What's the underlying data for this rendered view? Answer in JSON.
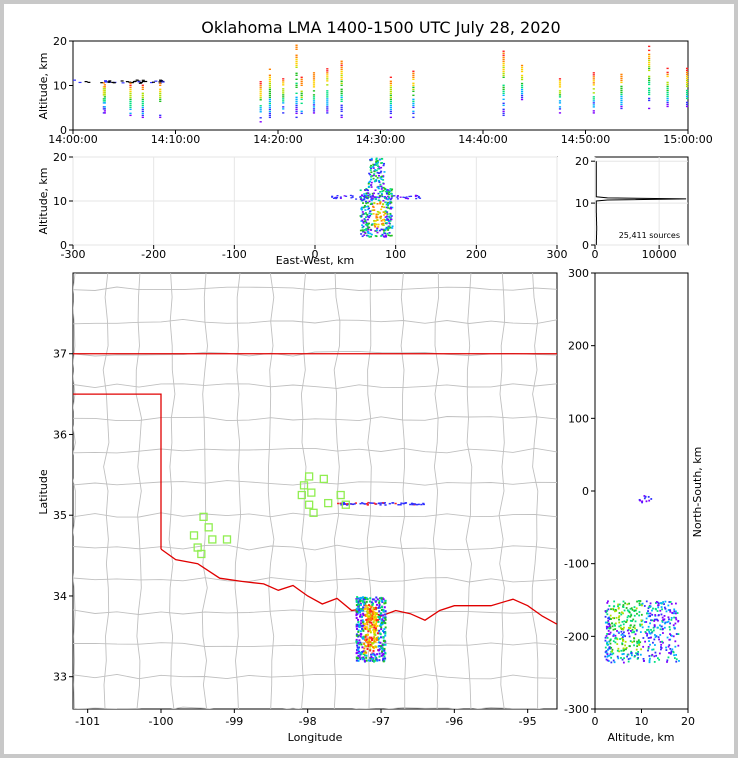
{
  "title": "Oklahoma LMA 1400-1500 UTC July 28, 2020",
  "colors": {
    "state_line": "#e00000",
    "county_line": "#c0c0c0",
    "station": "#90ee50",
    "background": "#c8c8c8"
  },
  "chart_data": [
    {
      "id": "time_height",
      "type": "scatter",
      "ylabel": "Altitude, km",
      "ylim": [
        0,
        20
      ],
      "yticks": [
        "0",
        "10",
        "20"
      ],
      "xlim": [
        "14:00:00",
        "15:00:00"
      ],
      "xticks": [
        "14:00:00",
        "14:10:00",
        "14:20:00",
        "14:30:00",
        "14:40:00",
        "14:50:00",
        "15:00:00"
      ],
      "columns_minutes": [
        3,
        3.1,
        5.6,
        6.8,
        8.5,
        18.3,
        19.2,
        20.5,
        21.8,
        22.3,
        23.5,
        24.8,
        26.2,
        31,
        33.2,
        42,
        43.8,
        47.5,
        50.8,
        53.5,
        56.2,
        58,
        59.9
      ],
      "cluster_top_km": [
        11,
        11,
        11,
        11,
        11,
        11,
        14,
        12,
        20,
        12,
        13,
        14,
        16,
        12,
        14,
        18,
        15,
        12,
        13,
        13,
        19,
        14,
        14
      ],
      "cluster_bottom_km": [
        4,
        4,
        3,
        3,
        3,
        2,
        3,
        4,
        3,
        3,
        4,
        4,
        3,
        3,
        3,
        3,
        7,
        4,
        4,
        5,
        5,
        5,
        5
      ]
    },
    {
      "id": "ew_altitude",
      "type": "heatmap",
      "xlabel": "East-West, km",
      "ylabel": "Altitude, km",
      "xlim": [
        -300,
        300
      ],
      "ylim": [
        0,
        20
      ],
      "xticks": [
        "-300",
        "-200",
        "-100",
        "0",
        "100",
        "200",
        "300"
      ],
      "yticks": [
        "0",
        "10",
        "20"
      ],
      "core_x_range_km": [
        55,
        95
      ],
      "core_alt_range_km": [
        2,
        20
      ],
      "anvil_x_range_km": [
        20,
        130
      ],
      "anvil_alt_km": 11
    },
    {
      "id": "altitude_histogram",
      "type": "line",
      "xticks": [
        "0",
        "10000"
      ],
      "yticks": [
        "0",
        "10",
        "20"
      ],
      "xlim": [
        0,
        14500
      ],
      "ylim": [
        0,
        21
      ],
      "peak_alt_km": 11,
      "peak_count": 14000,
      "annotation": "25,411 sources"
    },
    {
      "id": "plan_view_map",
      "type": "scatter",
      "xlabel": "Longitude",
      "ylabel": "Latitude",
      "xlim": [
        -101.2,
        -94.6
      ],
      "ylim": [
        32.6,
        38.0
      ],
      "xticks": [
        "-101",
        "-100",
        "-99",
        "-98",
        "-97",
        "-96",
        "-95"
      ],
      "yticks": [
        "33",
        "34",
        "35",
        "36",
        "37"
      ],
      "stations": [
        [
          -97.98,
          35.48
        ],
        [
          -98.05,
          35.37
        ],
        [
          -98.08,
          35.25
        ],
        [
          -97.95,
          35.28
        ],
        [
          -97.98,
          35.13
        ],
        [
          -97.92,
          35.03
        ],
        [
          -97.78,
          35.45
        ],
        [
          -97.72,
          35.15
        ],
        [
          -97.55,
          35.25
        ],
        [
          -97.48,
          35.13
        ],
        [
          -99.42,
          34.98
        ],
        [
          -99.35,
          34.85
        ],
        [
          -99.55,
          34.75
        ],
        [
          -99.3,
          34.7
        ],
        [
          -99.5,
          34.6
        ],
        [
          -99.45,
          34.52
        ],
        [
          -99.1,
          34.7
        ]
      ],
      "storm_core_lon_range": [
        -97.35,
        -96.95
      ],
      "storm_core_lat_range": [
        33.2,
        34.0
      ],
      "anvil_lon_range": [
        -97.6,
        -96.4
      ],
      "anvil_lat": 35.15
    },
    {
      "id": "ns_altitude",
      "type": "heatmap",
      "xlabel": "Altitude, km",
      "ylabel": "North-South, km",
      "xlim": [
        0,
        20
      ],
      "ylim": [
        -300,
        300
      ],
      "xticks": [
        "0",
        "10",
        "20"
      ],
      "yticks": [
        "-300",
        "-200",
        "-100",
        "0",
        "100",
        "200",
        "300"
      ],
      "core_ns_range_km": [
        -235,
        -150
      ],
      "core_alt_range_km": [
        2,
        18
      ],
      "small_cluster_ns_km": -10
    }
  ]
}
